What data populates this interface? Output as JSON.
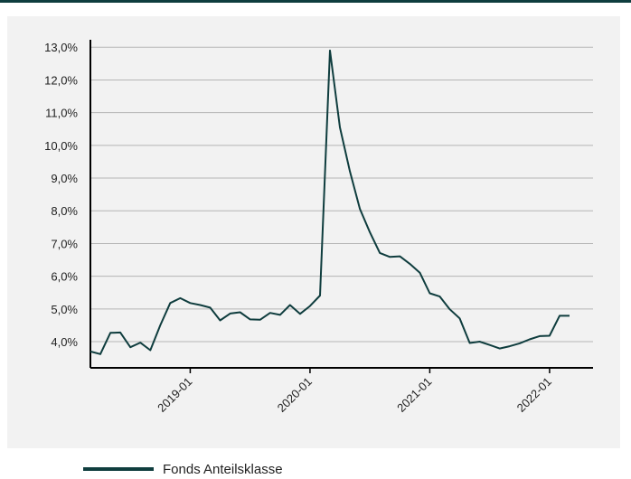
{
  "colors": {
    "series": "#0f3d3e",
    "grid": "#b5b5b5",
    "axis": "#000000",
    "background": "#f2f2f2"
  },
  "legend": {
    "label": "Fonds Anteilsklasse"
  },
  "chart_data": {
    "type": "line",
    "title": "",
    "xlabel": "",
    "ylabel": "",
    "grid": true,
    "legend_position": "bottom-left",
    "y_ticks": [
      "4,0%",
      "5,0%",
      "6,0%",
      "7,0%",
      "8,0%",
      "9,0%",
      "10,0%",
      "11,0%",
      "12,0%",
      "13,0%"
    ],
    "x_ticks": [
      "2019-01",
      "2020-01",
      "2021-01",
      "2022-01"
    ],
    "ylim": [
      3.2,
      13.2
    ],
    "series": [
      {
        "name": "Fonds Anteilsklasse",
        "x": [
          "2018-03",
          "2018-04",
          "2018-05",
          "2018-06",
          "2018-07",
          "2018-08",
          "2018-09",
          "2018-10",
          "2018-11",
          "2018-12",
          "2019-01",
          "2019-02",
          "2019-03",
          "2019-04",
          "2019-05",
          "2019-06",
          "2019-07",
          "2019-08",
          "2019-09",
          "2019-10",
          "2019-11",
          "2019-12",
          "2020-01",
          "2020-02",
          "2020-03",
          "2020-04",
          "2020-05",
          "2020-06",
          "2020-07",
          "2020-08",
          "2020-09",
          "2020-10",
          "2020-11",
          "2020-12",
          "2021-01",
          "2021-02",
          "2021-03",
          "2021-04",
          "2021-05",
          "2021-06",
          "2021-07",
          "2021-08",
          "2021-09",
          "2021-10",
          "2021-11",
          "2021-12",
          "2022-01",
          "2022-02",
          "2022-03"
        ],
        "values": [
          3.7,
          3.62,
          4.27,
          4.28,
          3.83,
          3.97,
          3.74,
          4.5,
          5.18,
          5.33,
          5.18,
          5.12,
          5.04,
          4.65,
          4.86,
          4.9,
          4.68,
          4.67,
          4.88,
          4.82,
          5.12,
          4.85,
          5.09,
          5.41,
          12.9,
          10.55,
          9.2,
          8.06,
          7.34,
          6.71,
          6.59,
          6.61,
          6.38,
          6.11,
          5.48,
          5.38,
          4.99,
          4.71,
          3.96,
          4.0,
          3.9,
          3.79,
          3.86,
          3.95,
          4.07,
          4.17,
          4.18,
          4.79,
          4.79
        ]
      }
    ]
  }
}
